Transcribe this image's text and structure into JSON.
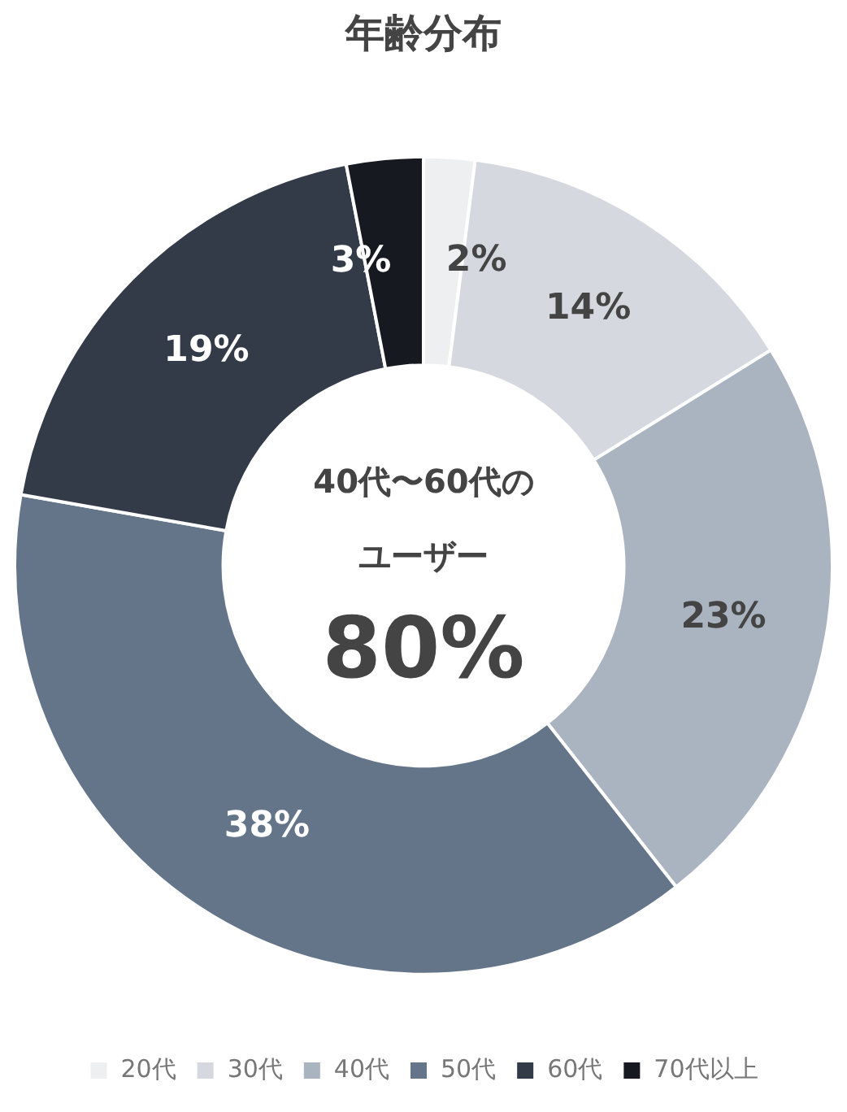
{
  "chart_data": {
    "type": "donut",
    "title": "年齢分布",
    "categories": [
      "20代",
      "30代",
      "40代",
      "50代",
      "60代",
      "70代以上"
    ],
    "values": [
      2,
      14,
      23,
      38,
      19,
      3
    ],
    "value_labels": [
      "2%",
      "14%",
      "23%",
      "38%",
      "19%",
      "3%"
    ],
    "colors": [
      "#eeeff1",
      "#d5d9df",
      "#aab3c0",
      "#64758a",
      "#343b48",
      "#16191f"
    ],
    "annotations": [
      "40代〜60代の",
      "ユーザー",
      "80%"
    ],
    "legend": "bottom"
  }
}
